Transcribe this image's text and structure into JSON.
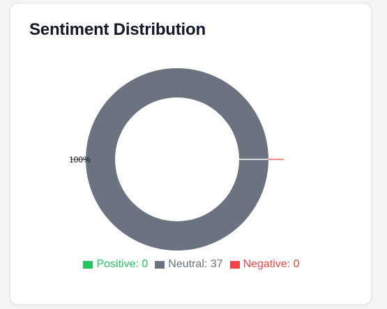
{
  "card": {
    "title": "Sentiment Distribution"
  },
  "chart_data": {
    "type": "pie",
    "style": "donut",
    "categories": [
      "Positive",
      "Neutral",
      "Negative"
    ],
    "values": [
      0,
      37,
      0
    ],
    "colors": [
      "#22c55e",
      "#6b7280",
      "#ef4444"
    ],
    "slice_labels": [
      "",
      "100%",
      ""
    ],
    "legend_position": "bottom",
    "legend": [
      {
        "text": "Positive: 0",
        "color": "#22c55e"
      },
      {
        "text": "Neutral: 37",
        "color": "#6b7280"
      },
      {
        "text": "Negative: 0",
        "color": "#ef4444"
      }
    ]
  }
}
